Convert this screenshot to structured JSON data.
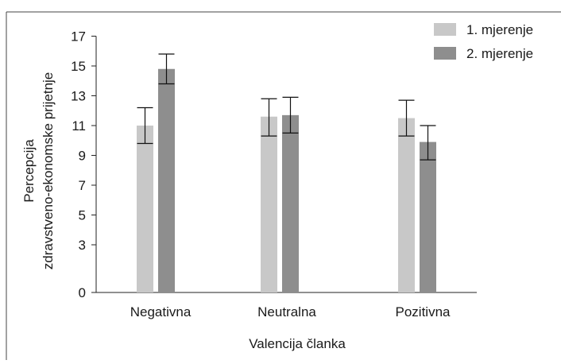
{
  "chart_data": {
    "type": "bar",
    "categories": [
      "Negativna",
      "Neutralna",
      "Pozitivna"
    ],
    "series": [
      {
        "name": "1. mjerenje",
        "color": "#c8c8c8",
        "values": [
          11.0,
          11.6,
          11.5
        ],
        "err_low": [
          9.8,
          10.3,
          10.3
        ],
        "err_high": [
          12.2,
          12.8,
          12.7
        ]
      },
      {
        "name": "2. mjerenje",
        "color": "#8e8e8e",
        "values": [
          14.8,
          11.7,
          9.9
        ],
        "err_low": [
          13.8,
          10.5,
          8.7
        ],
        "err_high": [
          15.8,
          12.9,
          11.0
        ]
      }
    ],
    "xlabel": "Valencija članka",
    "ylabel_lines": [
      "Percepcija",
      "zdravstveno-ekonomske prijetnje"
    ],
    "yticks": [
      0,
      3,
      5,
      7,
      9,
      11,
      13,
      15,
      17
    ],
    "ylim": [
      0,
      17
    ],
    "axis_break": true,
    "grid": false,
    "legend_position": "top-right"
  }
}
